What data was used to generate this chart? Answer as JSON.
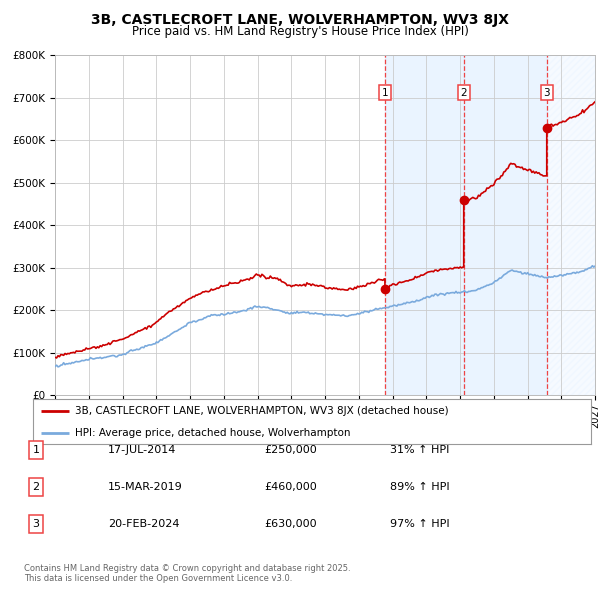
{
  "title_line1": "3B, CASTLECROFT LANE, WOLVERHAMPTON, WV3 8JX",
  "title_line2": "Price paid vs. HM Land Registry's House Price Index (HPI)",
  "background_color": "#ffffff",
  "plot_bg_color": "#ffffff",
  "grid_color": "#cccccc",
  "sale_color": "#cc0000",
  "hpi_color": "#7aaadd",
  "sale_label": "3B, CASTLECROFT LANE, WOLVERHAMPTON, WV3 8JX (detached house)",
  "hpi_label": "HPI: Average price, detached house, Wolverhampton",
  "sale_dates": [
    2014.54,
    2019.21,
    2024.13
  ],
  "sale_prices": [
    250000,
    460000,
    630000
  ],
  "transaction_details": [
    {
      "num": "1",
      "date": "17-JUL-2014",
      "price": "£250,000",
      "change": "31% ↑ HPI"
    },
    {
      "num": "2",
      "date": "15-MAR-2019",
      "price": "£460,000",
      "change": "89% ↑ HPI"
    },
    {
      "num": "3",
      "date": "20-FEB-2024",
      "price": "£630,000",
      "change": "97% ↑ HPI"
    }
  ],
  "vline_color": "#ee4444",
  "vline_shade_color": "#ddeeff",
  "footer": "Contains HM Land Registry data © Crown copyright and database right 2025.\nThis data is licensed under the Open Government Licence v3.0.",
  "ylim": [
    0,
    800000
  ],
  "xlim_start": 1995,
  "xlim_end": 2027
}
